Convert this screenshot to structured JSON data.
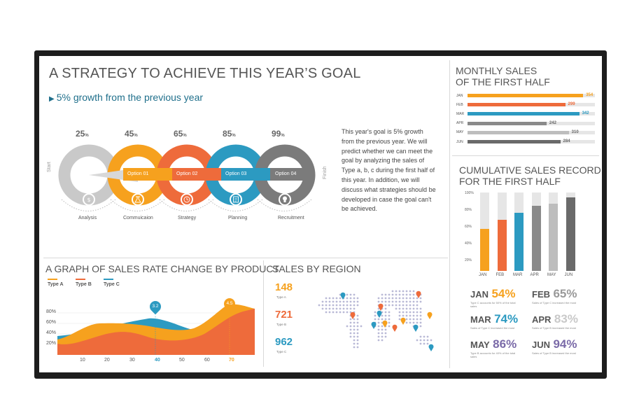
{
  "main": {
    "title": "A STRATEGY TO ACHIEVE THIS YEAR’S GOAL",
    "subtitle": "5% growth from the previous year",
    "start_label": "Start",
    "finish_label": "Finish",
    "paragraph": "This year's goal is 5% growth from the previous year. We will predict whether we can meet the goal by analyzing the sales of Type a, b, c during the first half of this year. In addition, we will discuss what strategies should be developed in case the goal can't be achieved.",
    "stages": [
      {
        "pct": "25",
        "option": "",
        "label": "Analysis",
        "color": "#c9c9c9",
        "icon": "money-bag-icon"
      },
      {
        "pct": "45",
        "option": "Option 01",
        "label": "Commuicaion",
        "color": "#f6a11e",
        "icon": "flask-icon"
      },
      {
        "pct": "65",
        "option": "Option 02",
        "label": "Strategy",
        "color": "#ee6b3b",
        "icon": "clock-icon"
      },
      {
        "pct": "85",
        "option": "Option 03",
        "label": "Planning",
        "color": "#2c9ac1",
        "icon": "document-icon"
      },
      {
        "pct": "99",
        "option": "Option 04",
        "label": "Recruitment",
        "color": "#7b7b7b",
        "icon": "lightbulb-icon"
      }
    ],
    "pct_unit": "%"
  },
  "monthly": {
    "title_line1": "MONTHLY SALES",
    "title_line2": "OF THE FIRST HALF",
    "rows": [
      {
        "month": "JAN",
        "value": "354",
        "num": 354,
        "color": "#f6a11e"
      },
      {
        "month": "FEB",
        "value": "299",
        "num": 299,
        "color": "#ee6b3b"
      },
      {
        "month": "MAR",
        "value": "342",
        "num": 342,
        "color": "#2c9ac1"
      },
      {
        "month": "APR",
        "value": "242",
        "num": 242,
        "color": "#8a8a8a"
      },
      {
        "month": "MAY",
        "value": "310",
        "num": 310,
        "color": "#bdbdbd"
      },
      {
        "month": "JUN",
        "value": "284",
        "num": 284,
        "color": "#6a6a6a"
      }
    ],
    "max": 354
  },
  "cumulative": {
    "title_line1": "CUMULATIVE SALES RECORD",
    "title_line2": "FOR THE FIRST HALF",
    "yticks": [
      "100%",
      "80%",
      "60%",
      "40%",
      "20%"
    ],
    "bars": [
      {
        "month": "JAN",
        "value": 54,
        "color": "#f6a11e"
      },
      {
        "month": "FEB",
        "value": 65,
        "color": "#ee6b3b"
      },
      {
        "month": "MAR",
        "value": 74,
        "color": "#2c9ac1"
      },
      {
        "month": "APR",
        "value": 83,
        "color": "#8a8a8a"
      },
      {
        "month": "MAY",
        "value": 86,
        "color": "#bdbdbd"
      },
      {
        "month": "JUN",
        "value": 94,
        "color": "#6a6a6a"
      }
    ],
    "stats": [
      {
        "month": "JAN",
        "pct": "54%",
        "color": "#f6a11e",
        "note": "Type C accounts for 50% of the total sales"
      },
      {
        "month": "FEB",
        "pct": "65%",
        "color": "#999999",
        "note": "Sales of Type C increased the most"
      },
      {
        "month": "MAR",
        "pct": "74%",
        "color": "#2c9ac1",
        "note": "Sales of Type C increased the most"
      },
      {
        "month": "APR",
        "pct": "83%",
        "color": "#c9c9c9",
        "note": "Sales of Type B increased the most"
      },
      {
        "month": "MAY",
        "pct": "86%",
        "color": "#7a6aa8",
        "note": "Type B accounts for 40% of the total sales"
      },
      {
        "month": "JUN",
        "pct": "94%",
        "color": "#7a6aa8",
        "note": "Sales of Type B increased the most"
      }
    ]
  },
  "graph": {
    "title": "A GRAPH OF SALES RATE CHANGE BY PRODUCT",
    "legend": [
      {
        "name": "Type A",
        "color": "#f6a11e"
      },
      {
        "name": "Type B",
        "color": "#ee6b3b"
      },
      {
        "name": "Type C",
        "color": "#2c9ac1"
      }
    ],
    "yticks": [
      "80%",
      "60%",
      "40%",
      "20%"
    ],
    "xticks": [
      "10",
      "20",
      "30",
      "40",
      "50",
      "60",
      "70"
    ],
    "pin1": "3.2",
    "pin2": "4.5"
  },
  "region": {
    "title": "SALES BY REGION",
    "items": [
      {
        "num": "148",
        "type": "Type A",
        "color": "#f6a11e"
      },
      {
        "num": "721",
        "type": "Type B",
        "color": "#ee6b3b"
      },
      {
        "num": "962",
        "type": "Type C",
        "color": "#2c9ac1"
      }
    ]
  }
}
